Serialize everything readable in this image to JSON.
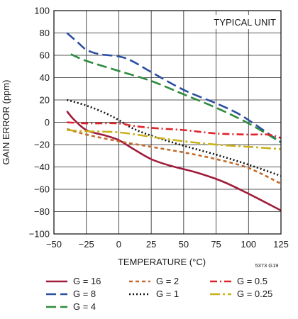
{
  "chart_data": {
    "type": "line",
    "xlabel": "TEMPERATURE (°C)",
    "ylabel": "GAIN ERROR (ppm)",
    "xlim": [
      -50,
      125
    ],
    "ylim": [
      -100,
      100
    ],
    "x_ticks": [
      -50,
      -25,
      0,
      25,
      50,
      75,
      100,
      125
    ],
    "y_ticks": [
      -100,
      -80,
      -60,
      -40,
      -20,
      0,
      20,
      40,
      60,
      80,
      100
    ],
    "grid": true,
    "annotations": [
      "TYPICAL UNIT"
    ],
    "figure_id": "5373 G19",
    "legend_placement": "bottom",
    "series": [
      {
        "name": "G = 16",
        "color": "#a01c3c",
        "dash": "solid",
        "x": [
          -40,
          -35,
          -25,
          -10,
          0,
          10,
          25,
          40,
          60,
          80,
          100,
          125
        ],
        "y": [
          10,
          3,
          -7,
          -12,
          -16,
          -23,
          -33,
          -39,
          -45,
          -53,
          -64,
          -79
        ]
      },
      {
        "name": "G = 8",
        "color": "#2b4fa0",
        "dash": "long",
        "x": [
          -40,
          -32,
          -25,
          -15,
          0,
          10,
          25,
          50,
          75,
          90,
          100,
          125
        ],
        "y": [
          80,
          72,
          65,
          61,
          59,
          55,
          45,
          29,
          17,
          9,
          2,
          -18
        ]
      },
      {
        "name": "G = 4",
        "color": "#2e8b3e",
        "dash": "long",
        "x": [
          -37,
          -25,
          0,
          25,
          50,
          75,
          100,
          125
        ],
        "y": [
          61,
          55,
          46,
          37,
          25,
          13,
          -1,
          -18
        ]
      },
      {
        "name": "G = 2",
        "color": "#c26a2a",
        "dash": "short",
        "x": [
          -40,
          -25,
          0,
          25,
          50,
          75,
          100,
          125
        ],
        "y": [
          -6,
          -11,
          -17,
          -22,
          -27,
          -33,
          -41,
          -55
        ]
      },
      {
        "name": "G = 1",
        "color": "#111111",
        "dash": "dotted",
        "x": [
          -40,
          -25,
          -10,
          0,
          10,
          25,
          50,
          75,
          100,
          125
        ],
        "y": [
          20,
          15,
          8,
          2,
          -5,
          -12,
          -21,
          -29,
          -38,
          -48
        ]
      },
      {
        "name": "G = 0.5",
        "color": "#e0242a",
        "dash": "dashdot",
        "x": [
          -40,
          -25,
          0,
          10,
          25,
          50,
          75,
          100,
          115,
          125
        ],
        "y": [
          0,
          -1,
          -1,
          -3,
          -5,
          -7,
          -10,
          -11,
          -11,
          -14
        ]
      },
      {
        "name": "G = 0.25",
        "color": "#c9b11c",
        "dash": "longdashdot",
        "x": [
          -40,
          -25,
          0,
          25,
          50,
          75,
          100,
          125
        ],
        "y": [
          -7,
          -8,
          -9,
          -13,
          -17,
          -20,
          -22,
          -24
        ]
      }
    ]
  }
}
